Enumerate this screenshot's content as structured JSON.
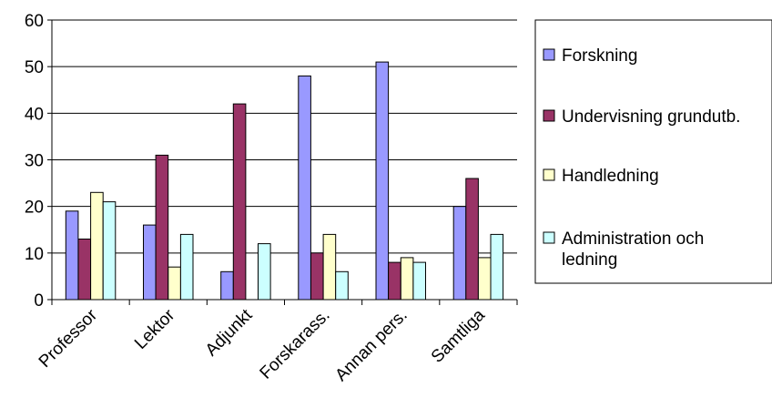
{
  "chart_data": {
    "type": "bar",
    "categories": [
      "Professor",
      "Lektor",
      "Adjunkt",
      "Forskarass.",
      "Annan pers.",
      "Samtliga"
    ],
    "series": [
      {
        "name": "Forskning",
        "values": [
          19,
          16,
          6,
          48,
          51,
          20
        ],
        "color": "#9999FF"
      },
      {
        "name": "Undervisning grundutb.",
        "values": [
          13,
          31,
          42,
          10,
          8,
          26
        ],
        "color": "#993366"
      },
      {
        "name": "Handledning",
        "values": [
          23,
          7,
          null,
          14,
          9,
          9
        ],
        "color": "#FFFFCC"
      },
      {
        "name": "Administration och ledning",
        "values": [
          21,
          14,
          12,
          6,
          8,
          14
        ],
        "color": "#CCFFFF"
      }
    ],
    "yticks": [
      "0",
      "10",
      "20",
      "30",
      "40",
      "50",
      "60"
    ],
    "ylim": [
      0,
      60
    ],
    "grid": "horizontal",
    "legend": "right",
    "title": "",
    "xlabel": "",
    "ylabel": ""
  },
  "legend_label_lines": [
    [
      "Forskning"
    ],
    [
      "Undervisning grundutb."
    ],
    [
      "Handledning"
    ],
    [
      "Administration och",
      "ledning"
    ]
  ]
}
